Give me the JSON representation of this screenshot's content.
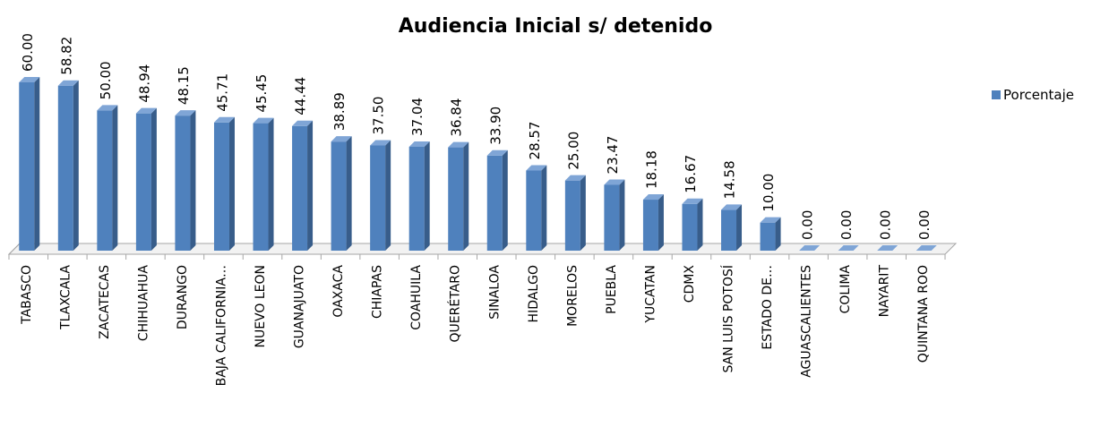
{
  "chart_data": {
    "type": "bar3d",
    "title": "Audiencia Inicial s/ detenido",
    "categories": [
      "TABASCO",
      "TLAXCALA",
      "ZACATECAS",
      "CHIHUAHUA",
      "DURANGO",
      "BAJA CALIFORNIA…",
      "NUEVO LEON",
      "GUANAJUATO",
      "OAXACA",
      "CHIAPAS",
      "COAHUILA",
      "QUERÉTARO",
      "SINALOA",
      "HIDALGO",
      "MORELOS",
      "PUEBLA",
      "YUCATAN",
      "CDMX",
      "SAN LUIS POTOSÍ",
      "ESTADO DE…",
      "AGUASCALIENTES",
      "COLIMA",
      "NAYARIT",
      "QUINTANA ROO"
    ],
    "series": [
      {
        "name": "Porcentaje",
        "color": "#4f81bd",
        "values": [
          60,
          58.82,
          50,
          48.94,
          48.15,
          45.71,
          45.45,
          44.44,
          38.89,
          37.5,
          37.04,
          36.84,
          33.9,
          28.57,
          25,
          23.47,
          18.18,
          16.67,
          14.58,
          10,
          0,
          0,
          0,
          0
        ],
        "value_labels": [
          "60.00",
          "58.82",
          "50.00",
          "48.94",
          "48.15",
          "45.71",
          "45.45",
          "44.44",
          "38.89",
          "37.50",
          "37.04",
          "36.84",
          "33.90",
          "28.57",
          "25.00",
          "23.47",
          "18.18",
          "16.67",
          "14.58",
          "10.00",
          "0.00",
          "0.00",
          "0.00",
          "0.00"
        ]
      }
    ],
    "legend": "right"
  }
}
